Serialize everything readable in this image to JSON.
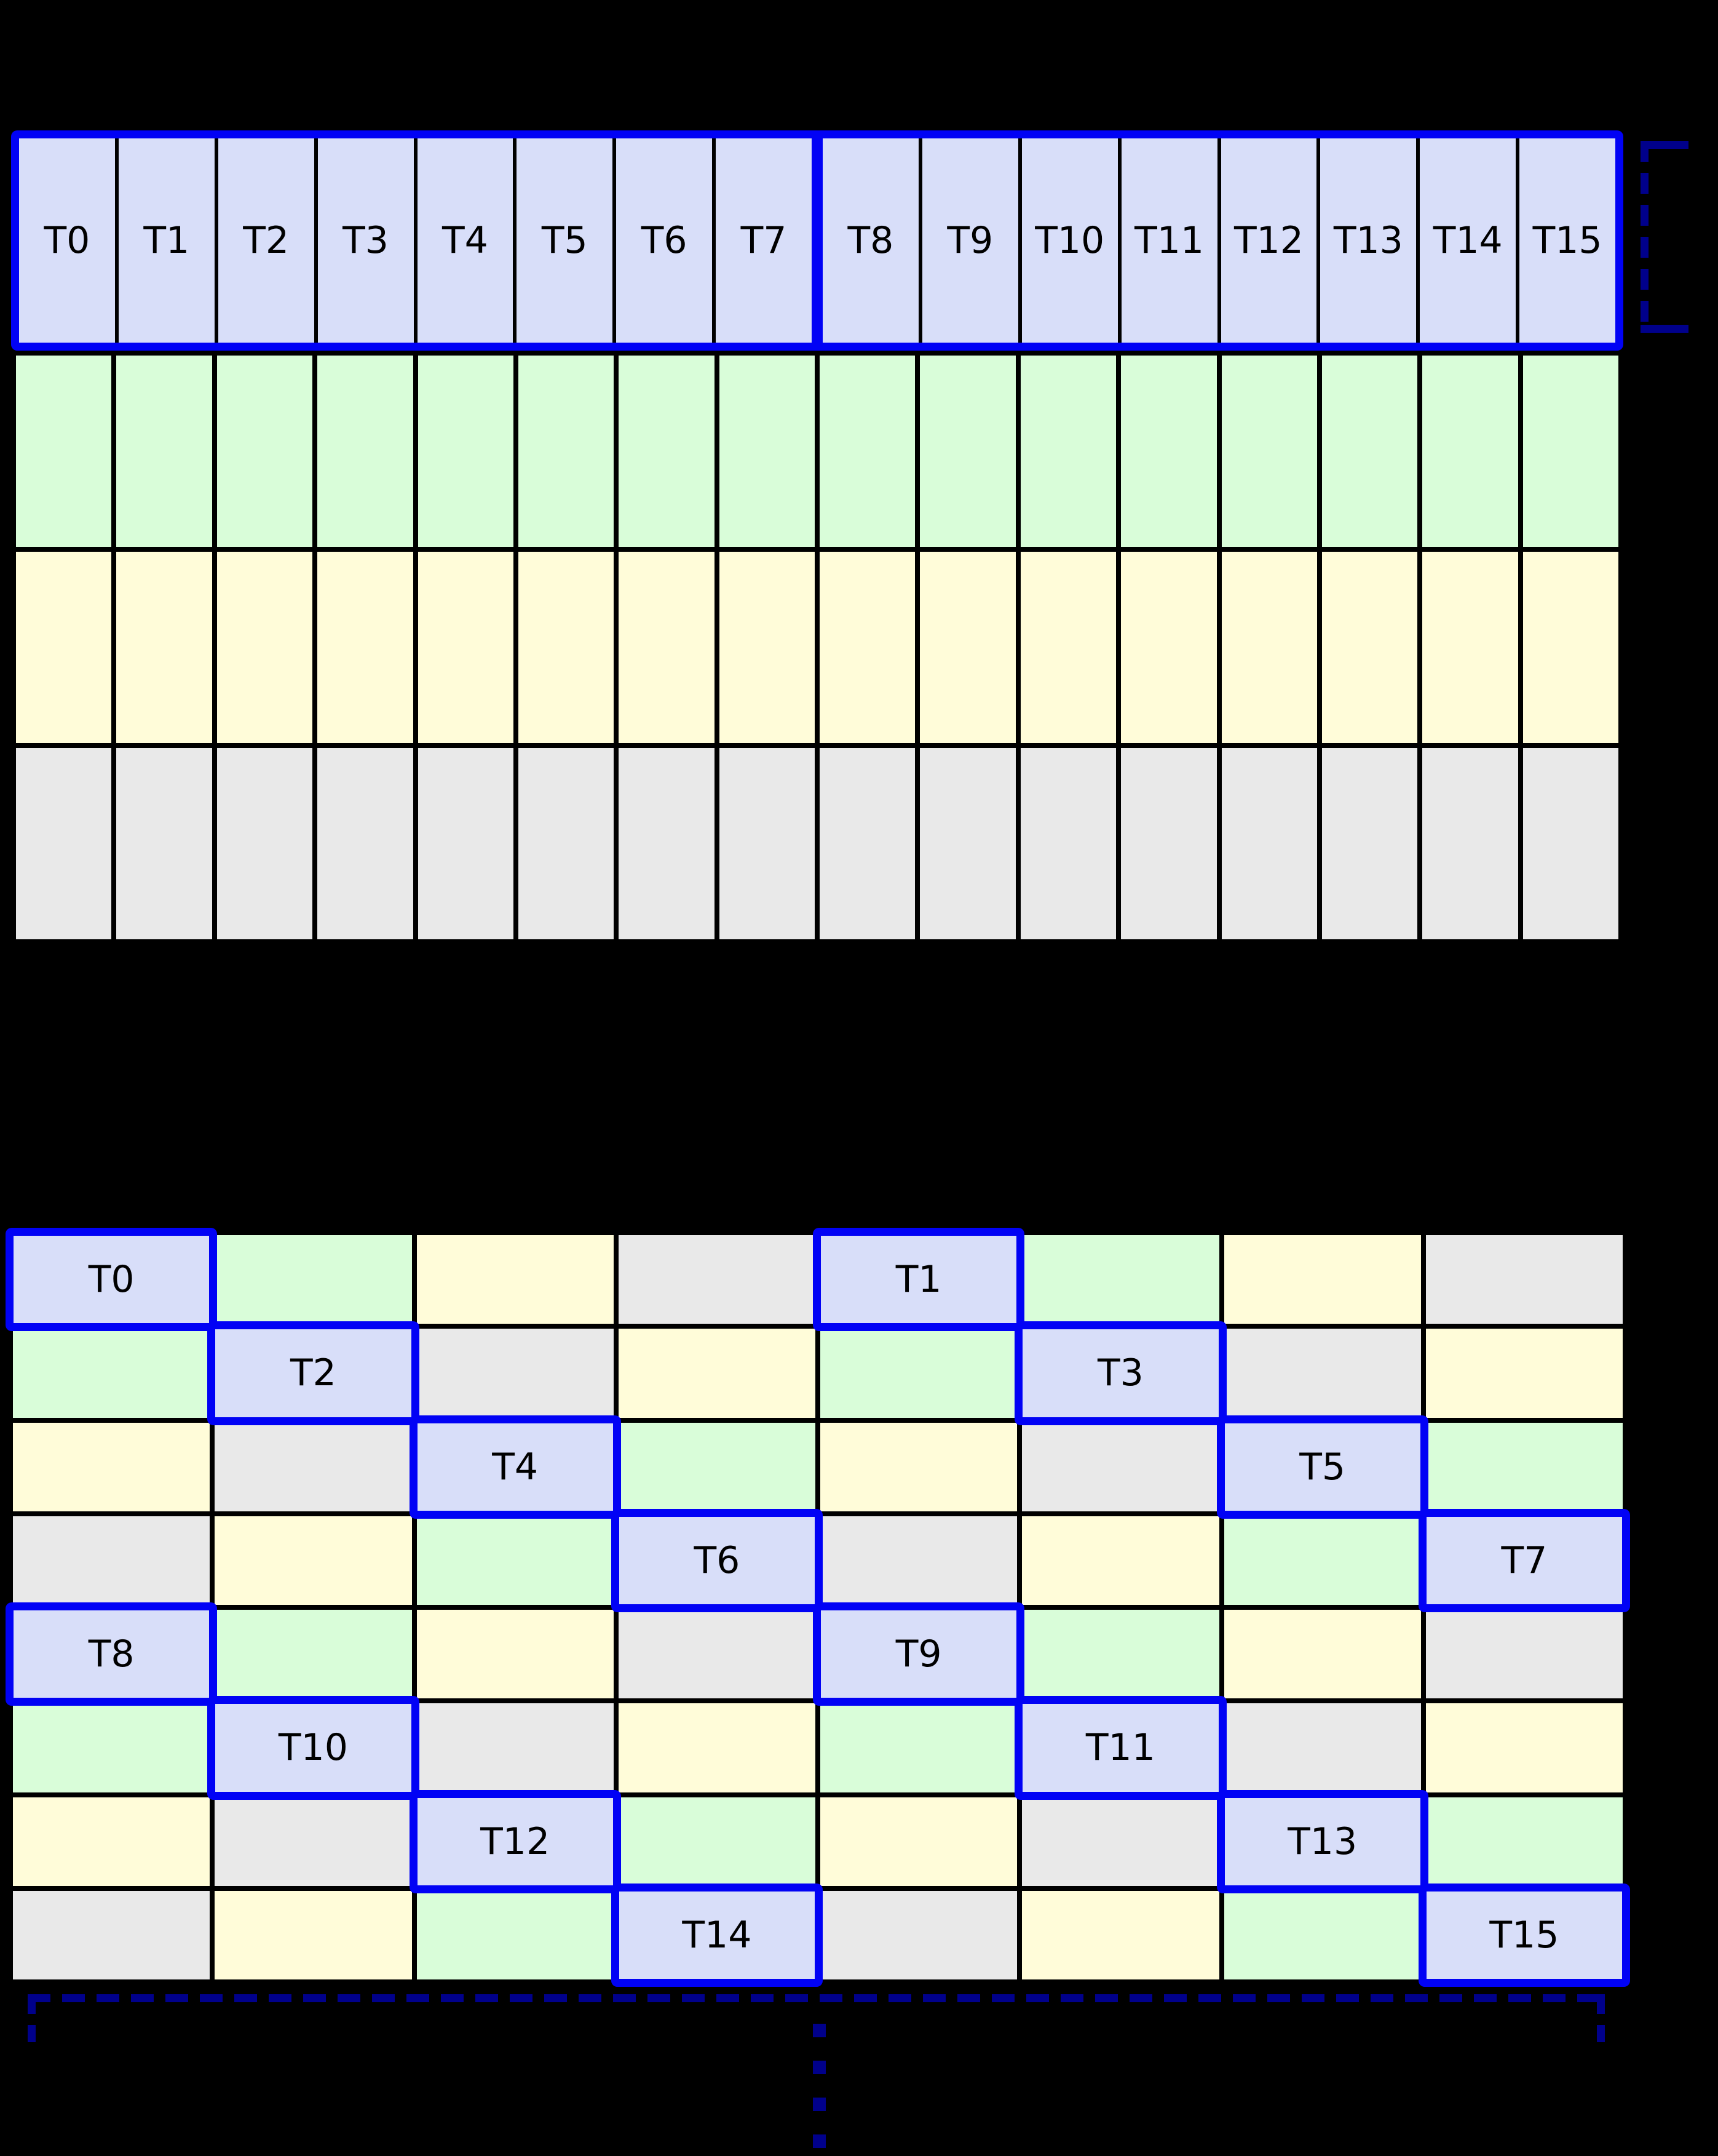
{
  "colors": {
    "background": "#000000",
    "grid_line": "#000000",
    "label": "#000000",
    "thread_fill": "#d8def9",
    "green": "#d9fdd9",
    "yellow": "#fffcd9",
    "gray": "#e9e9e9",
    "blue_border": "#0102f5",
    "navy_dashed": "#00008b"
  },
  "top_grid": {
    "columns": 16,
    "thread_labels": [
      "T0",
      "T1",
      "T2",
      "T3",
      "T4",
      "T5",
      "T6",
      "T7",
      "T8",
      "T9",
      "T10",
      "T11",
      "T12",
      "T13",
      "T14",
      "T15"
    ],
    "split_after_index": 7,
    "memory_row_colors": [
      "green",
      "yellow",
      "gray"
    ]
  },
  "bottom_grid": {
    "columns": 8,
    "rows": 8,
    "cells": [
      [
        "T0",
        "green",
        "yellow",
        "gray",
        "T1",
        "green",
        "yellow",
        "gray"
      ],
      [
        "green",
        "T2",
        "gray",
        "yellow",
        "green",
        "T3",
        "gray",
        "yellow"
      ],
      [
        "yellow",
        "gray",
        "T4",
        "green",
        "yellow",
        "gray",
        "T5",
        "green"
      ],
      [
        "gray",
        "yellow",
        "green",
        "T6",
        "gray",
        "yellow",
        "green",
        "T7"
      ],
      [
        "T8",
        "green",
        "yellow",
        "gray",
        "T9",
        "green",
        "yellow",
        "gray"
      ],
      [
        "green",
        "T10",
        "gray",
        "yellow",
        "green",
        "T11",
        "gray",
        "yellow"
      ],
      [
        "yellow",
        "gray",
        "T12",
        "green",
        "yellow",
        "gray",
        "T13",
        "green"
      ],
      [
        "gray",
        "yellow",
        "green",
        "T14",
        "gray",
        "yellow",
        "green",
        "T15"
      ]
    ]
  },
  "annotations": {
    "right_bracket": "dashed-bracket-open-right",
    "bottom_brace": "dashed-underbrace",
    "continuation_dots": 4
  }
}
